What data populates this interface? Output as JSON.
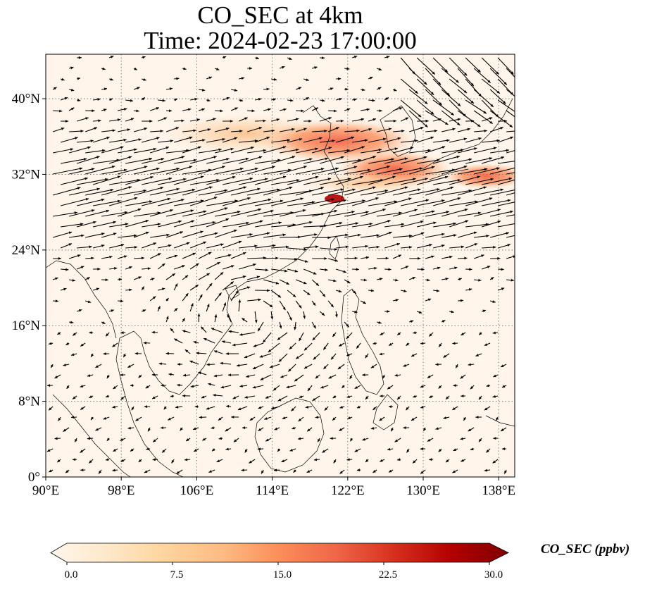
{
  "title": {
    "line1": "CO_SEC at 4km",
    "line2": "Time: 2024-02-23 17:00:00"
  },
  "map": {
    "extent": {
      "lon_min": 90,
      "lon_max": 139.7,
      "lat_min": 0,
      "lat_max": 44.7
    },
    "x_ticks": [
      {
        "lon": 90,
        "label": "90°E"
      },
      {
        "lon": 98,
        "label": "98°E"
      },
      {
        "lon": 106,
        "label": "106°E"
      },
      {
        "lon": 114,
        "label": "114°E"
      },
      {
        "lon": 122,
        "label": "122°E"
      },
      {
        "lon": 130,
        "label": "130°E"
      },
      {
        "lon": 138,
        "label": "138°E"
      }
    ],
    "y_ticks": [
      {
        "lat": 0,
        "label": "0°"
      },
      {
        "lat": 8,
        "label": "8°N"
      },
      {
        "lat": 16,
        "label": "16°N"
      },
      {
        "lat": 24,
        "label": "24°N"
      },
      {
        "lat": 32,
        "label": "32°N"
      },
      {
        "lat": 40,
        "label": "40°N"
      }
    ],
    "gridlines": "dotted",
    "colors": {
      "background": "#fff5eb",
      "coastline": "#000000",
      "gridline": "#7a7a7a",
      "vectors": "#000000"
    }
  },
  "colorbar": {
    "title": "CO_SEC (ppbv)",
    "min": 0.0,
    "max": 30.0,
    "extend": "both",
    "colormap": "OrRd",
    "stops": [
      "#fff7ec",
      "#fee8c8",
      "#fdd49e",
      "#fdbb84",
      "#fc8d59",
      "#ef6548",
      "#d7301f",
      "#b30000",
      "#7f0000"
    ],
    "ticks": [
      {
        "value": 0.0,
        "label": "0.0"
      },
      {
        "value": 7.5,
        "label": "7.5"
      },
      {
        "value": 15.0,
        "label": "15.0"
      },
      {
        "value": 22.5,
        "label": "22.5"
      },
      {
        "value": 30.0,
        "label": "30.0"
      }
    ]
  }
}
